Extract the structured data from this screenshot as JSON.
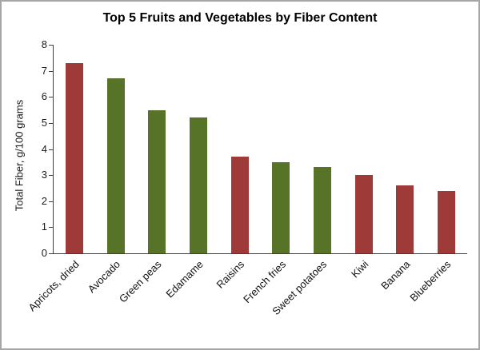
{
  "window": {
    "background": "#ffffff",
    "border_color": "#a6a6a6"
  },
  "chart_data": {
    "type": "bar",
    "title": "Top 5 Fruits and Vegetables by Fiber Content",
    "xlabel": "",
    "ylabel": "Total Fiber, g/100 grams",
    "ylim": [
      0,
      8
    ],
    "yticks": [
      0,
      1,
      2,
      3,
      4,
      5,
      6,
      7,
      8
    ],
    "grid": false,
    "legend": "none",
    "categories": [
      "Apricots, dried",
      "Avocado",
      "Green peas",
      "Edamame",
      "Raisins",
      "French fries",
      "Sweet potatoes",
      "Kiwi",
      "Banana",
      "Blueberries"
    ],
    "values": [
      7.3,
      6.7,
      5.5,
      5.2,
      3.7,
      3.5,
      3.3,
      3.0,
      2.6,
      2.4
    ],
    "bar_colors": [
      "#9e3a38",
      "#567327",
      "#567327",
      "#567327",
      "#9e3a38",
      "#567327",
      "#567327",
      "#9e3a38",
      "#9e3a38",
      "#9e3a38"
    ],
    "color_legend": {
      "fruit": "#9e3a38",
      "vegetable": "#567327"
    }
  }
}
